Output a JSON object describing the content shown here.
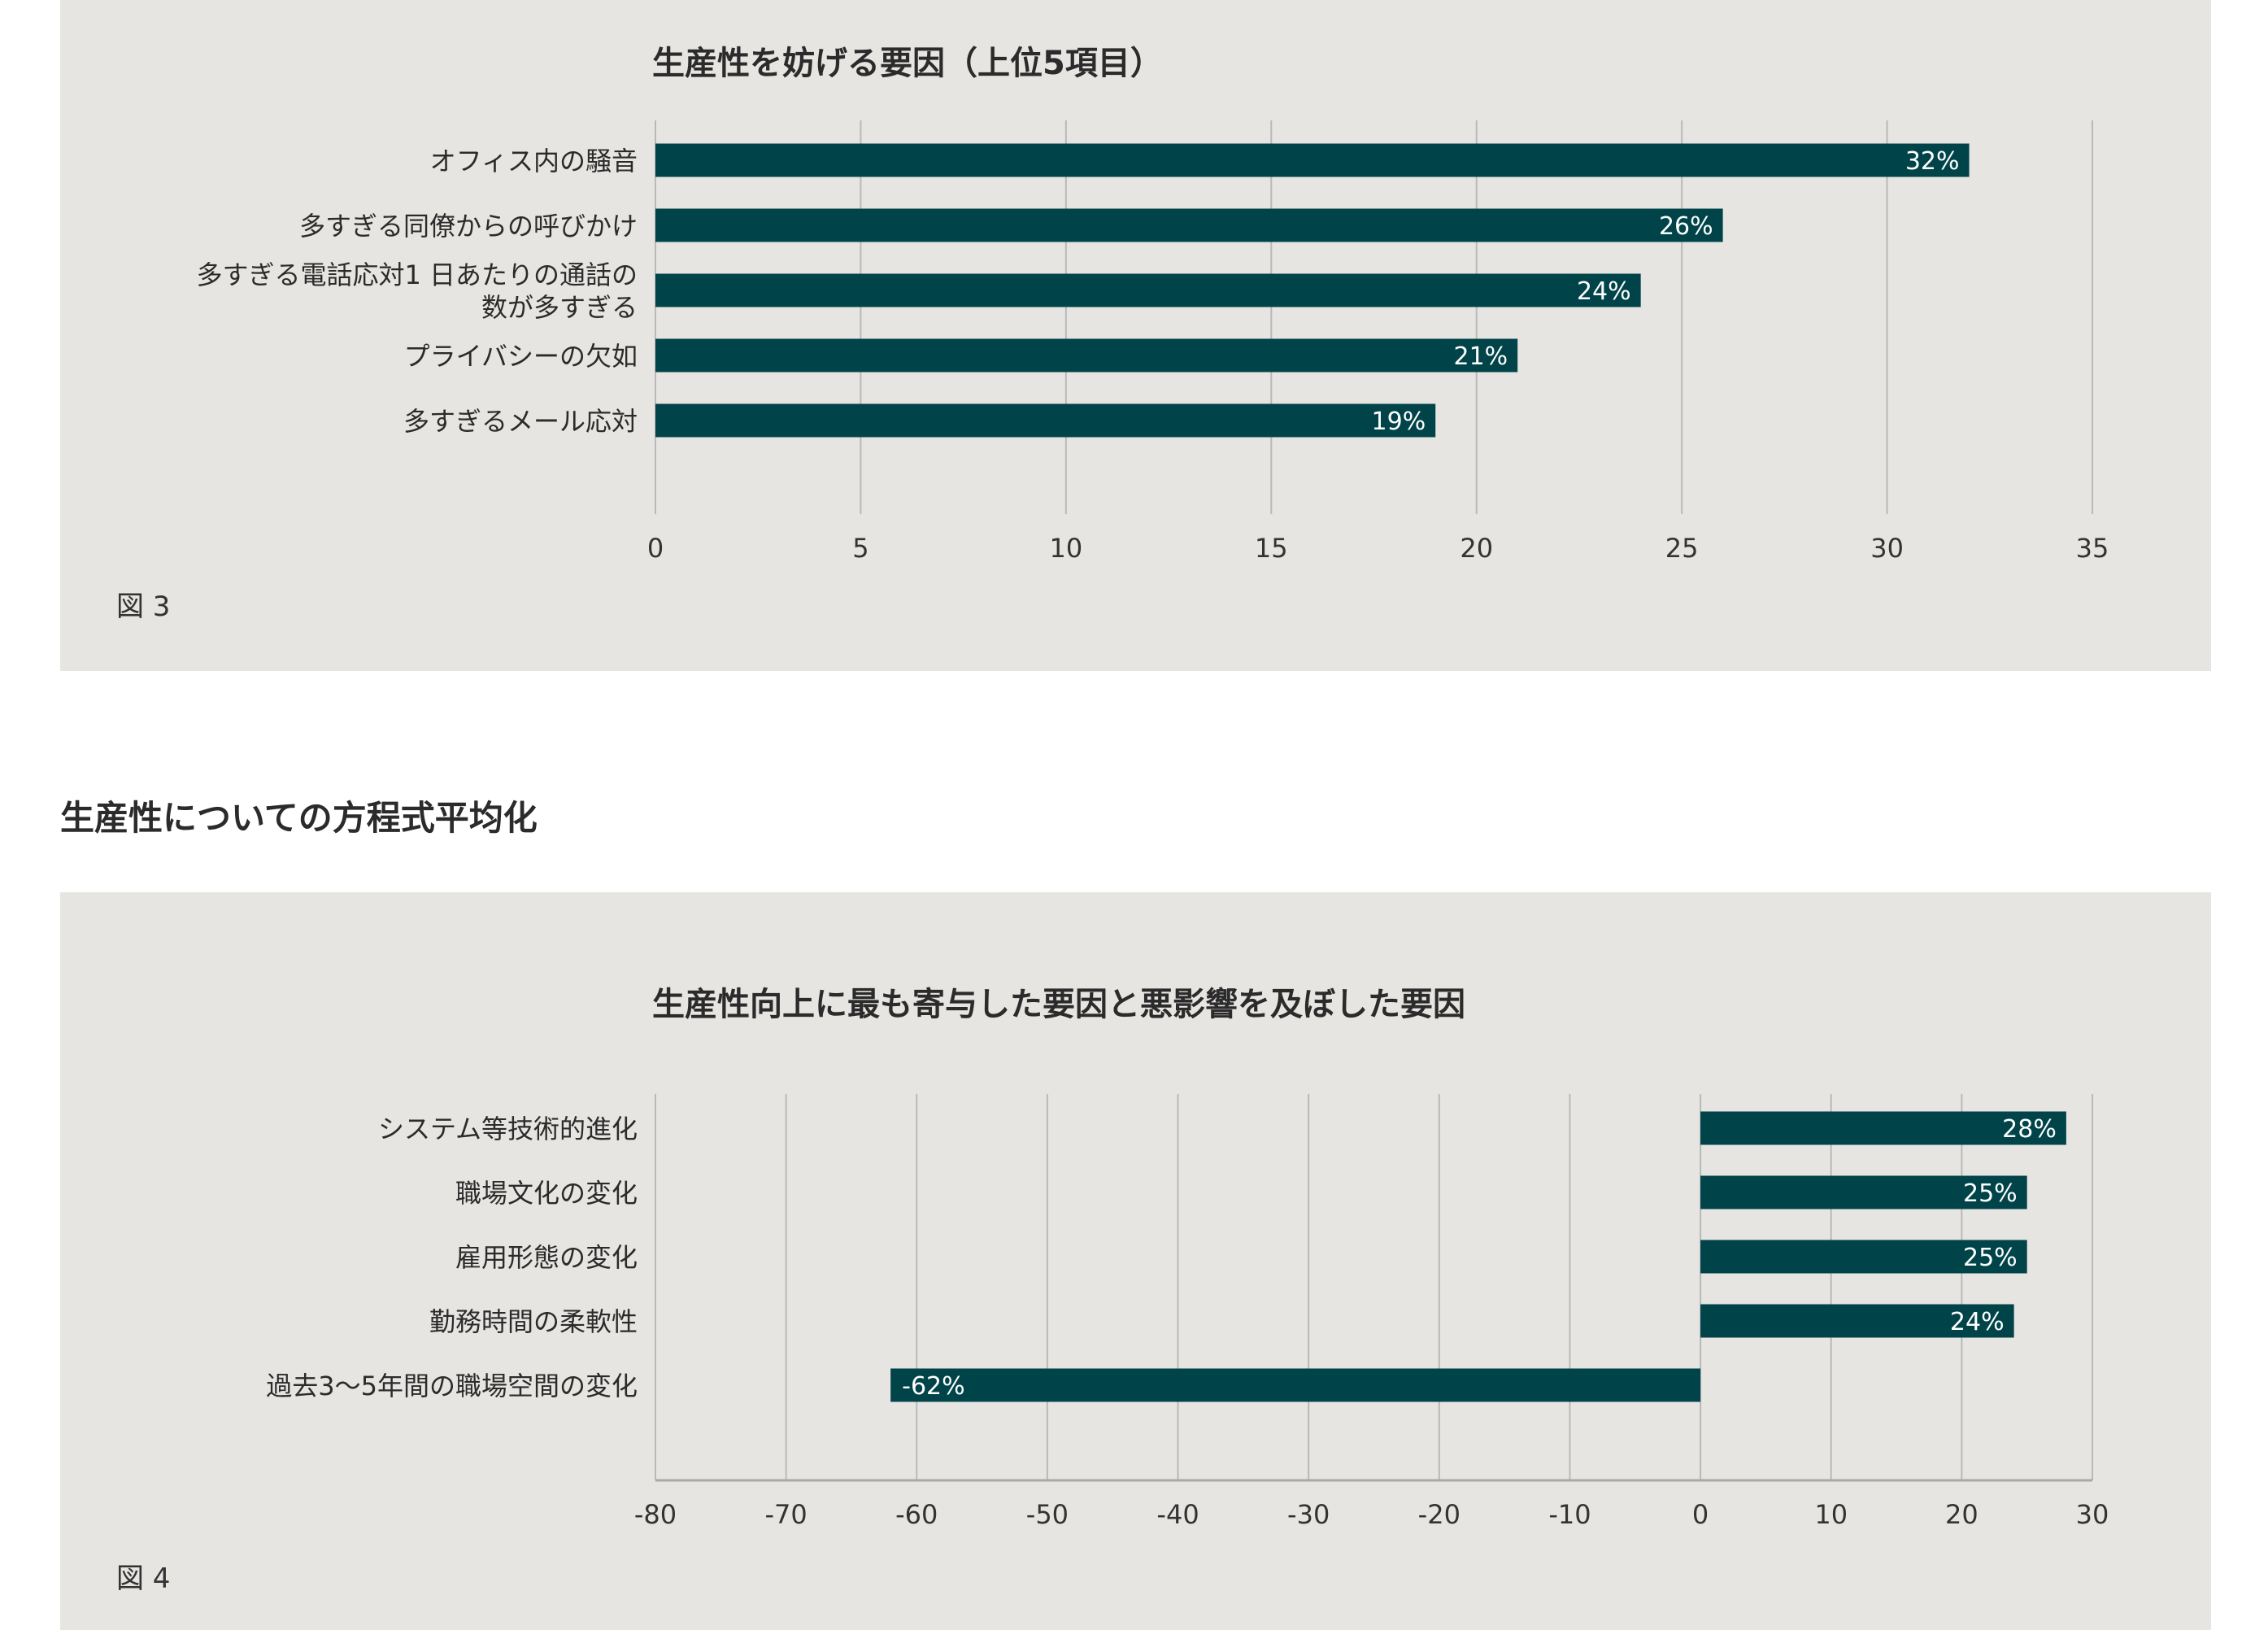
{
  "colors": {
    "bar": "#00444a",
    "grid": "#b9b9b9",
    "axis": "#a9a9a9",
    "panel": "#e7e5e2",
    "bar_label": "#ffffff"
  },
  "section_heading": "生産性についての方程式平均化",
  "chart_data": [
    {
      "type": "bar",
      "orientation": "horizontal",
      "title": "生産性を妨げる要因（上位5項目）",
      "caption": "図 3",
      "categories": [
        "オフィス内の騒音",
        "多すぎる同僚からの呼びかけ",
        "多すぎる電話応対1 日あたりの通話の\n数が多すぎる",
        "プライバシーの欠如",
        "多すぎるメール応対"
      ],
      "values": [
        32,
        26,
        24,
        21,
        19
      ],
      "value_labels": [
        "32%",
        "26%",
        "24%",
        "21%",
        "19%"
      ],
      "xlim": [
        0,
        35
      ],
      "xticks": [
        0,
        5,
        10,
        15,
        20,
        25,
        30,
        35
      ],
      "xtick_labels": [
        "0",
        "5",
        "10",
        "15",
        "20",
        "25",
        "30",
        "35"
      ],
      "grid": true
    },
    {
      "type": "bar",
      "orientation": "horizontal",
      "title": "生産性向上に最も寄与した要因と悪影響を及ぼした要因",
      "caption": "図 4",
      "categories": [
        "システム等技術的進化",
        "職場文化の変化",
        "雇用形態の変化",
        "勤務時間の柔軟性",
        "過去3〜5年間の職場空間の変化"
      ],
      "values": [
        28,
        25,
        25,
        24,
        -62
      ],
      "value_labels": [
        "28%",
        "25%",
        "25%",
        "24%",
        "-62%"
      ],
      "xlim": [
        -80,
        30
      ],
      "xticks": [
        -80,
        -70,
        -60,
        -50,
        -40,
        -30,
        -20,
        -10,
        0,
        10,
        20,
        30
      ],
      "xtick_labels": [
        "-80",
        "-70",
        "-60",
        "-50",
        "-40",
        "-30",
        "-20",
        "-10",
        "0",
        "10",
        "20",
        "30"
      ],
      "grid": true
    }
  ]
}
